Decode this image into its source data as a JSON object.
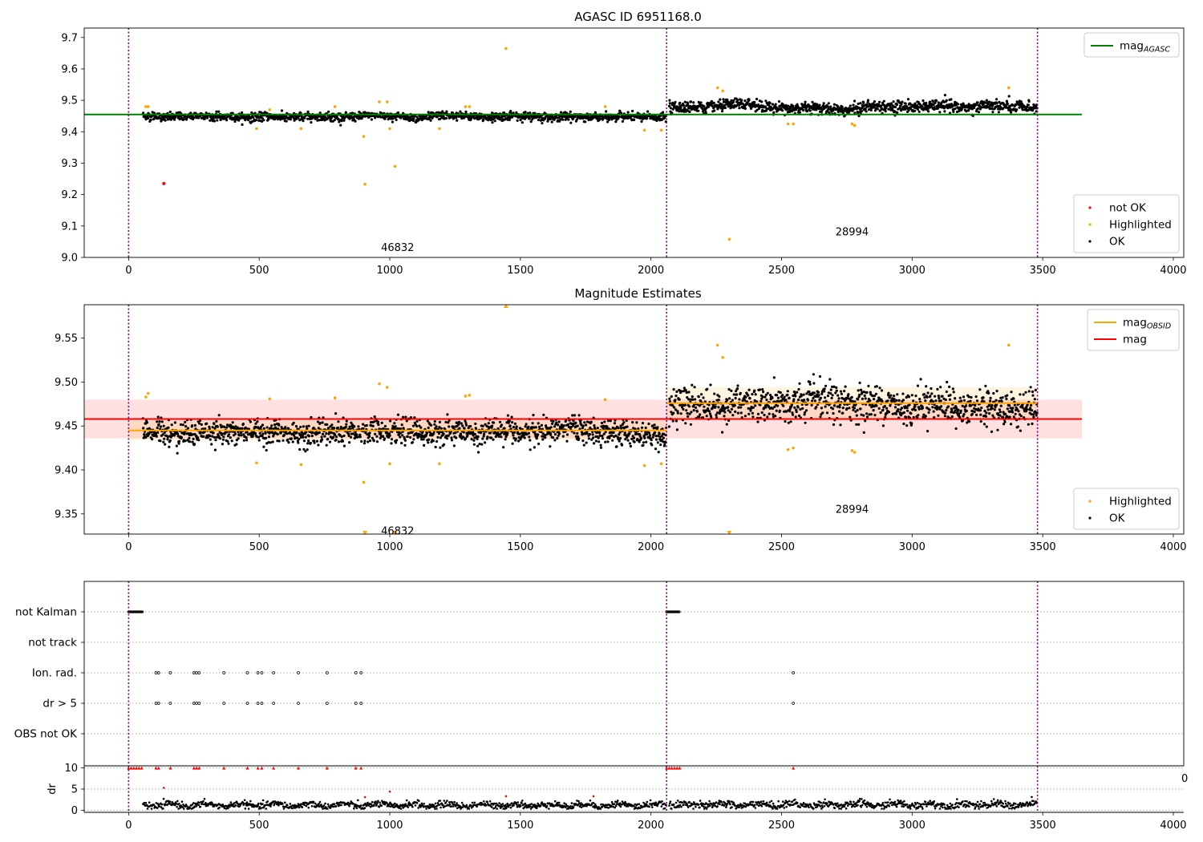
{
  "chart_data": [
    {
      "type": "scatter",
      "title": "AGASC ID 6951168.0",
      "xlim": [
        -170,
        4040
      ],
      "ylim": [
        9.0,
        9.73
      ],
      "xticks": [
        "0",
        "500",
        "1000",
        "1500",
        "2000",
        "2500",
        "3000",
        "3500",
        "4000"
      ],
      "yticks": [
        "9.0",
        "9.1",
        "9.2",
        "9.3",
        "9.4",
        "9.5",
        "9.6",
        "9.7"
      ],
      "ytick_values": [
        9.0,
        9.1,
        9.2,
        9.3,
        9.4,
        9.5,
        9.6,
        9.7
      ],
      "obsid_boundaries": [
        0,
        2060,
        3480
      ],
      "obsid_labels": [
        {
          "text": "46832",
          "x": 1030,
          "y": 9.03
        },
        {
          "text": "28994",
          "x": 2770,
          "y": 9.08
        }
      ],
      "reference_lines": [
        {
          "name": "mag_AGASC",
          "y": 9.455,
          "x": [
            -170,
            3650
          ],
          "color": "#008000"
        }
      ],
      "legend_upper": {
        "placement": "upper right",
        "entries": [
          {
            "label": "mag",
            "sub": "AGASC",
            "color": "#008000",
            "marker": "line"
          }
        ]
      },
      "legend_lower": {
        "placement": "lower right",
        "entries": [
          {
            "label": "not OK",
            "color": "#ff0000",
            "marker": "dot"
          },
          {
            "label": "Highlighted",
            "color": "#ffa500",
            "marker": "dot"
          },
          {
            "label": "OK",
            "color": "#000000",
            "marker": "dot"
          }
        ]
      },
      "series": [
        {
          "name": "OK",
          "color": "#000000",
          "segments": [
            {
              "x": [
                55,
                2060
              ],
              "mean": 9.448,
              "spread": 0.012
            },
            {
              "x": [
                2070,
                3480
              ],
              "mean": 9.478,
              "spread": 0.017
            }
          ]
        },
        {
          "name": "Highlighted",
          "color": "#ffa500",
          "points": [
            [
              66,
              9.48
            ],
            [
              75,
              9.48
            ],
            [
              490,
              9.41
            ],
            [
              540,
              9.47
            ],
            [
              660,
              9.41
            ],
            [
              790,
              9.48
            ],
            [
              900,
              9.385
            ],
            [
              905,
              9.233
            ],
            [
              960,
              9.495
            ],
            [
              990,
              9.495
            ],
            [
              1000,
              9.41
            ],
            [
              1020,
              9.29
            ],
            [
              1190,
              9.41
            ],
            [
              1290,
              9.48
            ],
            [
              1305,
              9.48
            ],
            [
              1445,
              9.665
            ],
            [
              1825,
              9.48
            ],
            [
              1975,
              9.405
            ],
            [
              2040,
              9.405
            ],
            [
              2255,
              9.54
            ],
            [
              2275,
              9.53
            ],
            [
              2300,
              9.058
            ],
            [
              2525,
              9.425
            ],
            [
              2545,
              9.425
            ],
            [
              2770,
              9.425
            ],
            [
              2780,
              9.42
            ],
            [
              3370,
              9.54
            ]
          ]
        },
        {
          "name": "not OK",
          "color": "#ff0000",
          "points": [
            [
              135,
              9.235
            ]
          ]
        }
      ]
    },
    {
      "type": "scatter",
      "title": "Magnitude Estimates",
      "xlim": [
        -170,
        4040
      ],
      "ylim": [
        9.327,
        9.588
      ],
      "xticks": [
        "0",
        "500",
        "1000",
        "1500",
        "2000",
        "2500",
        "3000",
        "3500",
        "4000"
      ],
      "yticks": [
        "9.35",
        "9.40",
        "9.45",
        "9.50",
        "9.55"
      ],
      "ytick_values": [
        9.35,
        9.4,
        9.45,
        9.5,
        9.55
      ],
      "obsid_boundaries": [
        0,
        2060,
        3480
      ],
      "obsid_labels": [
        {
          "text": "46832",
          "x": 1030,
          "y": 9.33
        },
        {
          "text": "28994",
          "x": 2770,
          "y": 9.355
        }
      ],
      "bands": [
        {
          "name": "mag",
          "y": 9.458,
          "range": [
            9.436,
            9.48
          ],
          "x": [
            -170,
            3650
          ],
          "color": "#ff0000"
        },
        {
          "name": "mag_OBSID",
          "y": 9.445,
          "range": [
            9.434,
            9.456
          ],
          "x": [
            0,
            2060
          ],
          "color": "#ffa500"
        },
        {
          "name": "mag_OBSID",
          "y": 9.476,
          "range": [
            9.458,
            9.494
          ],
          "x": [
            2060,
            3480
          ],
          "color": "#ffa500"
        }
      ],
      "legend_upper": {
        "placement": "upper right",
        "entries": [
          {
            "label": "mag",
            "sub": "OBSID",
            "color": "#ffa500",
            "marker": "line"
          },
          {
            "label": "mag",
            "sub": "",
            "color": "#ff0000",
            "marker": "line"
          }
        ]
      },
      "legend_lower": {
        "placement": "lower right",
        "entries": [
          {
            "label": "Highlighted",
            "color": "#ffa500",
            "marker": "dot"
          },
          {
            "label": "OK",
            "color": "#000000",
            "marker": "dot"
          }
        ]
      },
      "series": [
        {
          "name": "OK",
          "color": "#000000",
          "segments": [
            {
              "x": [
                55,
                2060
              ],
              "mean": 9.443,
              "spread": 0.013
            },
            {
              "x": [
                2070,
                3480
              ],
              "mean": 9.474,
              "spread": 0.018
            }
          ]
        },
        {
          "name": "Highlighted",
          "color": "#ffa500",
          "points": [
            [
              66,
              9.483
            ],
            [
              75,
              9.487
            ],
            [
              490,
              9.408
            ],
            [
              540,
              9.481
            ],
            [
              660,
              9.406
            ],
            [
              790,
              9.482
            ],
            [
              900,
              9.386
            ],
            [
              960,
              9.498
            ],
            [
              990,
              9.494
            ],
            [
              1000,
              9.407
            ],
            [
              1190,
              9.407
            ],
            [
              1290,
              9.484
            ],
            [
              1305,
              9.485
            ],
            [
              1825,
              9.48
            ],
            [
              1975,
              9.405
            ],
            [
              2040,
              9.407
            ],
            [
              2255,
              9.542
            ],
            [
              2275,
              9.528
            ],
            [
              2525,
              9.423
            ],
            [
              2545,
              9.425
            ],
            [
              2770,
              9.422
            ],
            [
              2780,
              9.42
            ],
            [
              3370,
              9.542
            ]
          ]
        },
        {
          "name": "Highlighted (out of range)",
          "color": "#ffa500",
          "points": [
            [
              905,
              9.233
            ],
            [
              1020,
              9.29
            ],
            [
              2300,
              9.058
            ],
            [
              1445,
              9.665
            ]
          ]
        }
      ]
    },
    {
      "type": "scatter",
      "title": "",
      "xlim": [
        -170,
        4040
      ],
      "categories": [
        "not Kalman",
        "not track",
        "Ion. rad.",
        "dr > 5",
        "OBS not OK"
      ],
      "obsid_boundaries": [
        0,
        2060,
        3480
      ],
      "series": [
        {
          "name": "not Kalman",
          "x_ranges": [
            [
              0,
              55
            ],
            [
              2060,
              2110
            ]
          ]
        },
        {
          "name": "not track",
          "x": []
        },
        {
          "name": "Ion. rad.",
          "x": [
            105,
            115,
            160,
            250,
            260,
            270,
            365,
            455,
            495,
            510,
            555,
            650,
            760,
            870,
            890,
            2545
          ]
        },
        {
          "name": "dr > 5",
          "x": [
            105,
            115,
            160,
            250,
            260,
            270,
            365,
            455,
            495,
            510,
            555,
            650,
            760,
            870,
            890,
            2545
          ]
        },
        {
          "name": "OBS not OK",
          "x": []
        }
      ]
    },
    {
      "type": "scatter",
      "title": "",
      "xlim": [
        -170,
        4040
      ],
      "ylim": [
        -0.5,
        10.5
      ],
      "ylabel": "dr",
      "xticks": [
        "0",
        "500",
        "1000",
        "1500",
        "2000",
        "2500",
        "3000",
        "3500",
        "4000"
      ],
      "yticks": [
        "0",
        "5",
        "10"
      ],
      "ytick_values": [
        0,
        5,
        10
      ],
      "offset_text": "0",
      "obsid_boundaries": [
        0,
        2060,
        3480
      ],
      "series": [
        {
          "name": "OK",
          "color": "#000000",
          "segments": [
            {
              "x": [
                55,
                2060
              ],
              "mean": 1.2,
              "spread": 0.45
            },
            {
              "x": [
                2070,
                3480
              ],
              "mean": 1.3,
              "spread": 0.5
            }
          ]
        },
        {
          "name": "not OK",
          "color": "#ff0000",
          "points": [
            [
              0,
              10
            ],
            [
              10,
              10
            ],
            [
              20,
              10
            ],
            [
              30,
              10
            ],
            [
              40,
              10
            ],
            [
              50,
              10
            ],
            [
              105,
              10
            ],
            [
              115,
              10
            ],
            [
              160,
              10
            ],
            [
              250,
              10
            ],
            [
              260,
              10
            ],
            [
              270,
              10
            ],
            [
              365,
              10
            ],
            [
              455,
              10
            ],
            [
              495,
              10
            ],
            [
              510,
              10
            ],
            [
              555,
              10
            ],
            [
              650,
              10
            ],
            [
              760,
              10
            ],
            [
              870,
              10
            ],
            [
              890,
              10
            ],
            [
              2060,
              10
            ],
            [
              2070,
              10
            ],
            [
              2080,
              10
            ],
            [
              2090,
              10
            ],
            [
              2100,
              10
            ],
            [
              2110,
              10
            ],
            [
              2545,
              10
            ],
            [
              135,
              5.3
            ],
            [
              905,
              3.1
            ],
            [
              1000,
              4.4
            ],
            [
              1445,
              3.3
            ],
            [
              1780,
              3.3
            ]
          ]
        }
      ]
    }
  ]
}
